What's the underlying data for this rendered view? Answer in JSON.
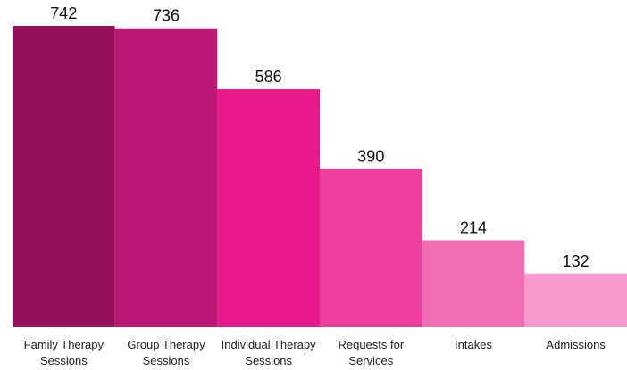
{
  "chart_data": {
    "type": "bar",
    "categories": [
      "Family Therapy Sessions",
      "Group Therapy Sessions",
      "Individual Therapy Sessions",
      "Requests for Services",
      "Intakes",
      "Admissions"
    ],
    "values": [
      742,
      736,
      586,
      390,
      214,
      132
    ],
    "colors": [
      "#97105a",
      "#bb1673",
      "#e8198b",
      "#ec3f9b",
      "#f06db4",
      "#f59acb"
    ]
  }
}
